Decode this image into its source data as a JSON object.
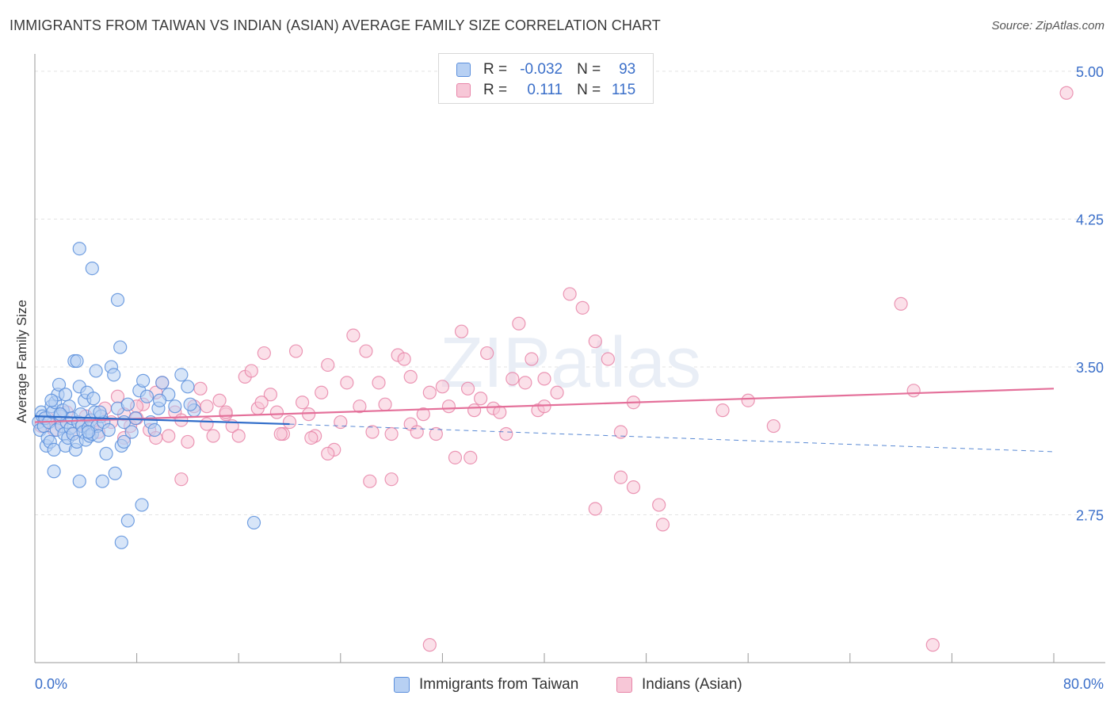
{
  "title": "IMMIGRANTS FROM TAIWAN VS INDIAN (ASIAN) AVERAGE FAMILY SIZE CORRELATION CHART",
  "source": "Source: ZipAtlas.com",
  "watermark": "ZIPatlas",
  "legend": {
    "rows": [
      {
        "r_label": "R = ",
        "r_value": "-0.032",
        "n_label": "N = ",
        "n_value": "93"
      },
      {
        "r_label": "R = ",
        "r_value": "0.111",
        "n_label": "N = ",
        "n_value": "115"
      }
    ]
  },
  "bottom_legend": [
    "Immigrants from Taiwan",
    "Indians (Asian)"
  ],
  "chart_data": {
    "type": "scatter",
    "title": "IMMIGRANTS FROM TAIWAN VS INDIAN (ASIAN) AVERAGE FAMILY SIZE CORRELATION CHART",
    "xlabel": "",
    "ylabel": "Average Family Size",
    "xlim": [
      0,
      80
    ],
    "ylim": [
      2.0,
      5.08
    ],
    "x_tick_labels": [
      "0.0%",
      "80.0%"
    ],
    "y_ticks": [
      2.75,
      3.5,
      4.25,
      5.0
    ],
    "y_tick_labels": [
      "2.75",
      "3.50",
      "4.25",
      "5.00"
    ],
    "grid": true,
    "colors": {
      "taiwan": "#5b8fdc",
      "taiwan_fill": "#b7d0f3",
      "indian": "#e885a8",
      "indian_fill": "#f7c7d7",
      "taiwan_line": "#2f6cc9",
      "indian_line": "#e4709a",
      "tick_text": "#3b6fc9"
    },
    "series": [
      {
        "name": "Immigrants from Taiwan",
        "trend": {
          "x": [
            0,
            20
          ],
          "y": [
            3.25,
            3.21
          ]
        },
        "trend_ext": {
          "x": [
            20,
            80
          ],
          "y": [
            3.21,
            3.07
          ]
        },
        "points": [
          [
            0.3,
            3.22
          ],
          [
            0.4,
            3.18
          ],
          [
            0.5,
            3.27
          ],
          [
            0.6,
            3.25
          ],
          [
            0.7,
            3.2
          ],
          [
            0.8,
            3.24
          ],
          [
            0.9,
            3.1
          ],
          [
            1.0,
            3.14
          ],
          [
            1.1,
            3.22
          ],
          [
            1.2,
            3.12
          ],
          [
            1.3,
            3.3
          ],
          [
            1.4,
            3.27
          ],
          [
            1.5,
            3.08
          ],
          [
            1.6,
            3.32
          ],
          [
            1.7,
            3.18
          ],
          [
            1.8,
            3.36
          ],
          [
            1.9,
            3.41
          ],
          [
            2.0,
            3.25
          ],
          [
            2.1,
            3.2
          ],
          [
            2.2,
            3.28
          ],
          [
            2.3,
            3.16
          ],
          [
            2.4,
            3.1
          ],
          [
            2.5,
            3.22
          ],
          [
            2.6,
            3.14
          ],
          [
            2.7,
            3.3
          ],
          [
            2.8,
            3.19
          ],
          [
            2.9,
            3.24
          ],
          [
            3.0,
            3.16
          ],
          [
            3.1,
            3.53
          ],
          [
            3.2,
            3.08
          ],
          [
            3.3,
            3.12
          ],
          [
            3.4,
            3.22
          ],
          [
            3.5,
            3.4
          ],
          [
            3.6,
            3.26
          ],
          [
            3.7,
            3.2
          ],
          [
            3.8,
            3.17
          ],
          [
            3.9,
            3.33
          ],
          [
            4.0,
            3.13
          ],
          [
            4.1,
            3.37
          ],
          [
            4.2,
            3.19
          ],
          [
            4.3,
            3.15
          ],
          [
            4.4,
            3.23
          ],
          [
            4.5,
            3.16
          ],
          [
            4.6,
            3.34
          ],
          [
            4.7,
            3.27
          ],
          [
            4.8,
            3.48
          ],
          [
            4.9,
            3.2
          ],
          [
            5.0,
            3.15
          ],
          [
            5.2,
            3.25
          ],
          [
            5.4,
            3.22
          ],
          [
            5.6,
            3.06
          ],
          [
            5.8,
            3.18
          ],
          [
            6.0,
            3.5
          ],
          [
            6.2,
            3.46
          ],
          [
            6.5,
            3.29
          ],
          [
            6.8,
            3.1
          ],
          [
            7.0,
            3.22
          ],
          [
            7.3,
            3.31
          ],
          [
            7.6,
            3.17
          ],
          [
            7.9,
            3.24
          ],
          [
            8.2,
            3.38
          ],
          [
            8.5,
            3.43
          ],
          [
            8.8,
            3.35
          ],
          [
            9.1,
            3.22
          ],
          [
            9.4,
            3.18
          ],
          [
            9.7,
            3.29
          ],
          [
            10.0,
            3.42
          ],
          [
            10.5,
            3.36
          ],
          [
            11.0,
            3.3
          ],
          [
            11.5,
            3.46
          ],
          [
            12.0,
            3.4
          ],
          [
            12.5,
            3.28
          ],
          [
            3.5,
            4.1
          ],
          [
            4.5,
            4.0
          ],
          [
            6.5,
            3.84
          ],
          [
            6.7,
            3.6
          ],
          [
            3.5,
            2.92
          ],
          [
            5.3,
            2.92
          ],
          [
            1.5,
            2.97
          ],
          [
            6.3,
            2.96
          ],
          [
            8.4,
            2.8
          ],
          [
            7.3,
            2.72
          ],
          [
            6.8,
            2.61
          ],
          [
            17.2,
            2.71
          ],
          [
            2.4,
            3.36
          ],
          [
            1.3,
            3.33
          ],
          [
            2.0,
            3.26
          ],
          [
            3.3,
            3.53
          ],
          [
            4.2,
            3.17
          ],
          [
            5.1,
            3.27
          ],
          [
            7.0,
            3.12
          ],
          [
            9.8,
            3.33
          ],
          [
            12.2,
            3.31
          ]
        ]
      },
      {
        "name": "Indians (Asian)",
        "trend": {
          "x": [
            0,
            80
          ],
          "y": [
            3.22,
            3.39
          ]
        },
        "points": [
          [
            0.5,
            3.2
          ],
          [
            1.0,
            3.24
          ],
          [
            1.5,
            3.18
          ],
          [
            2.0,
            3.22
          ],
          [
            2.5,
            3.27
          ],
          [
            3.0,
            3.16
          ],
          [
            3.5,
            3.21
          ],
          [
            4.0,
            3.25
          ],
          [
            4.5,
            3.19
          ],
          [
            5.0,
            3.17
          ],
          [
            5.5,
            3.29
          ],
          [
            6.0,
            3.22
          ],
          [
            6.5,
            3.35
          ],
          [
            7.0,
            3.26
          ],
          [
            7.5,
            3.2
          ],
          [
            8.0,
            3.24
          ],
          [
            8.5,
            3.31
          ],
          [
            9.0,
            3.18
          ],
          [
            9.5,
            3.37
          ],
          [
            10.0,
            3.42
          ],
          [
            10.5,
            3.15
          ],
          [
            11.0,
            3.27
          ],
          [
            11.5,
            3.23
          ],
          [
            12.0,
            3.12
          ],
          [
            12.5,
            3.3
          ],
          [
            13.0,
            3.39
          ],
          [
            13.5,
            3.21
          ],
          [
            14.0,
            3.15
          ],
          [
            14.5,
            3.33
          ],
          [
            15.0,
            3.26
          ],
          [
            15.5,
            3.2
          ],
          [
            16.0,
            3.15
          ],
          [
            16.5,
            3.45
          ],
          [
            17.0,
            3.48
          ],
          [
            17.5,
            3.29
          ],
          [
            18.0,
            3.57
          ],
          [
            18.5,
            3.36
          ],
          [
            19.0,
            3.27
          ],
          [
            19.5,
            3.16
          ],
          [
            20.0,
            3.22
          ],
          [
            20.5,
            3.58
          ],
          [
            21.0,
            3.32
          ],
          [
            21.5,
            3.26
          ],
          [
            22.0,
            3.15
          ],
          [
            22.5,
            3.37
          ],
          [
            23.0,
            3.51
          ],
          [
            23.5,
            3.08
          ],
          [
            24.0,
            3.22
          ],
          [
            24.5,
            3.42
          ],
          [
            25.0,
            3.66
          ],
          [
            25.5,
            3.3
          ],
          [
            26.0,
            3.58
          ],
          [
            26.5,
            3.17
          ],
          [
            27.0,
            3.42
          ],
          [
            27.5,
            3.31
          ],
          [
            28.0,
            3.16
          ],
          [
            28.5,
            3.56
          ],
          [
            29.0,
            3.54
          ],
          [
            29.5,
            3.21
          ],
          [
            30.0,
            3.17
          ],
          [
            30.5,
            3.26
          ],
          [
            31.0,
            3.37
          ],
          [
            31.5,
            3.16
          ],
          [
            32.0,
            3.4
          ],
          [
            32.5,
            3.3
          ],
          [
            33.0,
            3.04
          ],
          [
            33.5,
            3.68
          ],
          [
            34.0,
            3.39
          ],
          [
            34.5,
            3.28
          ],
          [
            35.0,
            3.34
          ],
          [
            35.5,
            3.57
          ],
          [
            36.0,
            3.29
          ],
          [
            36.5,
            3.27
          ],
          [
            37.0,
            3.16
          ],
          [
            37.5,
            3.44
          ],
          [
            38.0,
            3.72
          ],
          [
            38.5,
            3.42
          ],
          [
            39.0,
            3.54
          ],
          [
            39.5,
            3.28
          ],
          [
            40.0,
            3.44
          ],
          [
            41.0,
            3.37
          ],
          [
            42.0,
            3.87
          ],
          [
            43.0,
            3.8
          ],
          [
            44.0,
            3.63
          ],
          [
            45.0,
            3.54
          ],
          [
            46.0,
            3.17
          ],
          [
            47.0,
            3.32
          ],
          [
            54.0,
            3.28
          ],
          [
            56.0,
            3.33
          ],
          [
            58.0,
            3.2
          ],
          [
            68.0,
            3.82
          ],
          [
            69.0,
            3.38
          ],
          [
            40.0,
            3.3
          ],
          [
            29.5,
            3.45
          ],
          [
            7.0,
            3.14
          ],
          [
            8.0,
            3.3
          ],
          [
            9.5,
            3.14
          ],
          [
            11.5,
            2.93
          ],
          [
            13.5,
            3.3
          ],
          [
            17.8,
            3.32
          ],
          [
            19.3,
            3.16
          ],
          [
            21.7,
            3.14
          ],
          [
            23.0,
            3.06
          ],
          [
            26.3,
            2.92
          ],
          [
            28.0,
            2.93
          ],
          [
            34.2,
            3.04
          ],
          [
            46.0,
            2.94
          ],
          [
            47.0,
            2.89
          ],
          [
            49.0,
            2.8
          ],
          [
            49.3,
            2.7
          ],
          [
            44.0,
            2.78
          ],
          [
            31.0,
            2.09
          ],
          [
            70.5,
            2.09
          ],
          [
            81.0,
            4.89
          ],
          [
            15.0,
            3.27
          ]
        ]
      }
    ]
  }
}
